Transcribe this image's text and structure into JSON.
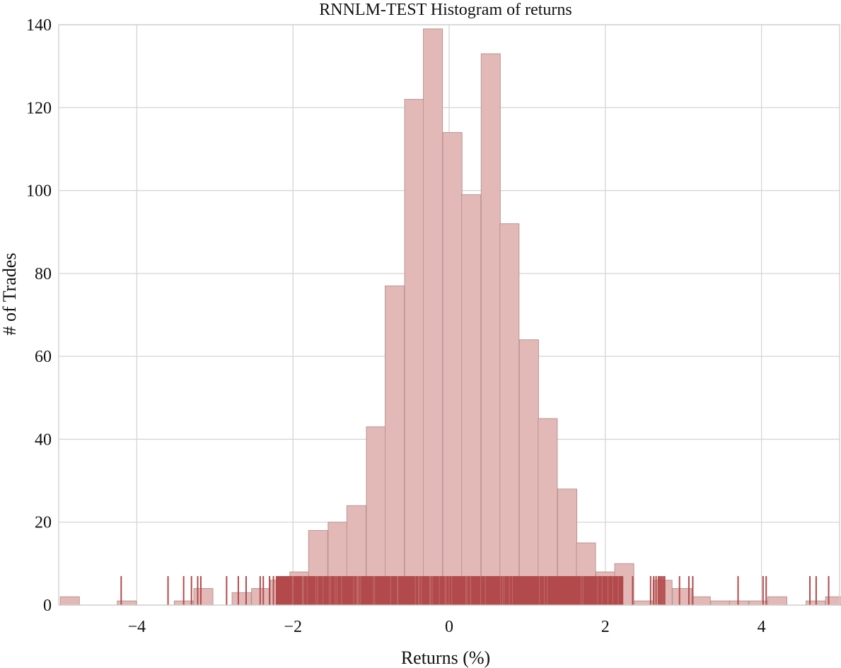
{
  "chart_data": {
    "type": "bar",
    "title": "RNNLM-TEST Histogram of returns",
    "xlabel": "Returns (%)",
    "ylabel": "# of Trades",
    "xlim": [
      -5,
      5
    ],
    "ylim": [
      0,
      140
    ],
    "xticks": [
      -4,
      -2,
      0,
      2,
      4
    ],
    "xtick_labels": [
      "−4",
      "−2",
      "0",
      "2",
      "4"
    ],
    "yticks": [
      0,
      20,
      40,
      60,
      80,
      100,
      120,
      140
    ],
    "ytick_labels": [
      "0",
      "20",
      "40",
      "60",
      "80",
      "100",
      "120",
      "140"
    ],
    "grid": true,
    "bin_width": 0.245,
    "bins": [
      {
        "start": -4.98,
        "count": 2
      },
      {
        "start": -4.25,
        "count": 1
      },
      {
        "start": -3.52,
        "count": 1
      },
      {
        "start": -3.27,
        "count": 4
      },
      {
        "start": -2.78,
        "count": 3
      },
      {
        "start": -2.53,
        "count": 4
      },
      {
        "start": -2.29,
        "count": 6
      },
      {
        "start": -2.04,
        "count": 8
      },
      {
        "start": -1.8,
        "count": 18
      },
      {
        "start": -1.55,
        "count": 20
      },
      {
        "start": -1.31,
        "count": 24
      },
      {
        "start": -1.06,
        "count": 43
      },
      {
        "start": -0.82,
        "count": 77
      },
      {
        "start": -0.57,
        "count": 122
      },
      {
        "start": -0.33,
        "count": 139
      },
      {
        "start": -0.08,
        "count": 114
      },
      {
        "start": 0.16,
        "count": 99
      },
      {
        "start": 0.41,
        "count": 133
      },
      {
        "start": 0.65,
        "count": 92
      },
      {
        "start": 0.9,
        "count": 64
      },
      {
        "start": 1.14,
        "count": 45
      },
      {
        "start": 1.39,
        "count": 28
      },
      {
        "start": 1.63,
        "count": 15
      },
      {
        "start": 1.88,
        "count": 8
      },
      {
        "start": 2.12,
        "count": 10
      },
      {
        "start": 2.37,
        "count": 1
      },
      {
        "start": 2.61,
        "count": 6
      },
      {
        "start": 2.86,
        "count": 4
      },
      {
        "start": 3.1,
        "count": 2
      },
      {
        "start": 3.35,
        "count": 1
      },
      {
        "start": 3.59,
        "count": 1
      },
      {
        "start": 3.84,
        "count": 1
      },
      {
        "start": 4.08,
        "count": 2
      },
      {
        "start": 4.33,
        "count": 0
      },
      {
        "start": 4.57,
        "count": 1
      },
      {
        "start": 4.82,
        "count": 2
      }
    ],
    "rug": {
      "height": 7,
      "dense_range": [
        -2.22,
        2.23
      ],
      "points": [
        -4.2,
        -3.6,
        -3.4,
        -3.3,
        -3.22,
        -3.18,
        -2.85,
        -2.7,
        -2.6,
        -2.42,
        -2.38,
        -2.3,
        -2.25,
        2.35,
        2.58,
        2.62,
        2.65,
        2.68,
        2.7,
        2.72,
        2.74,
        2.76,
        2.95,
        3.07,
        3.12,
        3.7,
        4.02,
        4.06,
        4.62,
        4.7,
        4.86
      ]
    },
    "colors": {
      "bar_fill": "#e3b9b7",
      "bar_stroke": "#b89593",
      "rug": "#b24a4b",
      "grid": "#d8d4d4",
      "axes_border": "#cccccc"
    }
  }
}
